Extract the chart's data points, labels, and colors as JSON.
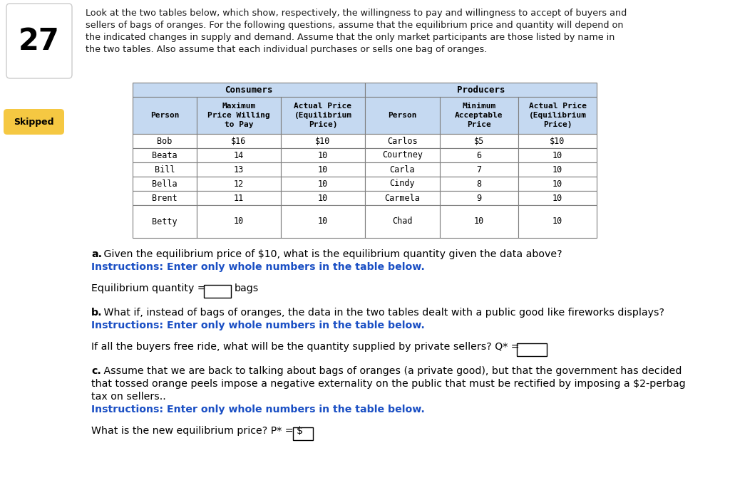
{
  "question_number": "27",
  "intro_text_lines": [
    "Look at the two tables below, which show, respectively, the willingness to pay and willingness to accept of buyers and",
    "sellers of bags of oranges. For the following questions, assume that the equilibrium price and quantity will depend on",
    "the indicated changes in supply and demand. Assume that the only market participants are those listed by name in",
    "the two tables. Also assume that each individual purchases or sells one bag of oranges."
  ],
  "skipped_label": "Skipped",
  "consumers_header": "Consumers",
  "producers_header": "Producers",
  "consumers_col_headers": [
    "Person",
    "Maximum\nPrice Willing\nto Pay",
    "Actual Price\n(Equilibrium\nPrice)"
  ],
  "producers_col_headers": [
    "Person",
    "Minimum\nAcceptable\nPrice",
    "Actual Price\n(Equilibrium\nPrice)"
  ],
  "consumers_data": [
    [
      "Bob",
      "$16",
      "$10"
    ],
    [
      "Beata",
      "14",
      "10"
    ],
    [
      "Bill",
      "13",
      "10"
    ],
    [
      "Bella",
      "12",
      "10"
    ],
    [
      "Brent",
      "11",
      "10"
    ],
    [
      "Betty",
      "10",
      "10"
    ]
  ],
  "producers_data": [
    [
      "Carlos",
      "$5",
      "$10"
    ],
    [
      "Courtney",
      "6",
      "10"
    ],
    [
      "Carla",
      "7",
      "10"
    ],
    [
      "Cindy",
      "8",
      "10"
    ],
    [
      "Carmela",
      "9",
      "10"
    ],
    [
      "Chad",
      "10",
      "10"
    ]
  ],
  "header_bg_color": "#c5d9f1",
  "table_border_color": "#7f7f7f",
  "instruction_color": "#1a4fc4",
  "bg_color": "#ffffff",
  "text_color": "#1a1a1a"
}
